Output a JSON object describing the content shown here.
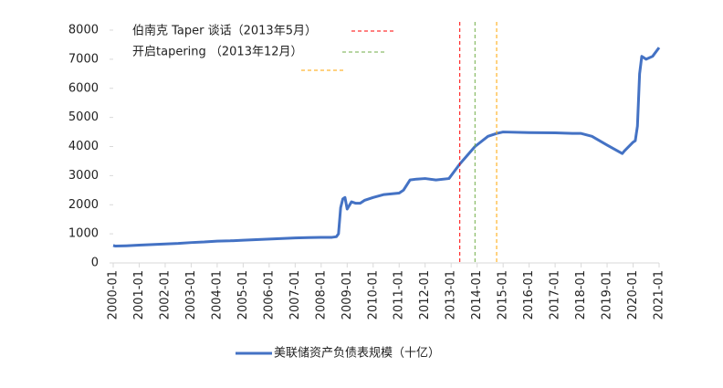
{
  "chart_data": {
    "type": "line",
    "xticks": [
      "2000-01",
      "2001-01",
      "2002-01",
      "2003-01",
      "2004-01",
      "2005-01",
      "2006-01",
      "2007-01",
      "2008-01",
      "2009-01",
      "2010-01",
      "2011-01",
      "2012-01",
      "2013-01",
      "2014-01",
      "2015-01",
      "2016-01",
      "2017-01",
      "2018-01",
      "2019-01",
      "2020-01",
      "2021-01"
    ],
    "ylim": [
      0,
      8000
    ],
    "yticks": [
      0,
      1000,
      2000,
      3000,
      4000,
      5000,
      6000,
      7000,
      8000
    ],
    "series": [
      {
        "name": "美联储资产负债表规模（十亿）",
        "color": "#4472c4",
        "x": [
          "2000-01",
          "2000-02",
          "2000-07",
          "2001-01",
          "2001-07",
          "2002-01",
          "2002-07",
          "2003-01",
          "2003-07",
          "2004-01",
          "2004-07",
          "2005-01",
          "2005-07",
          "2006-01",
          "2006-07",
          "2007-01",
          "2007-07",
          "2008-01",
          "2008-06",
          "2008-08",
          "2008-09",
          "2008-10",
          "2008-11",
          "2008-12",
          "2009-01",
          "2009-03",
          "2009-05",
          "2009-07",
          "2009-09",
          "2010-01",
          "2010-06",
          "2011-01",
          "2011-03",
          "2011-06",
          "2011-09",
          "2012-01",
          "2012-06",
          "2012-12",
          "2013-05",
          "2013-12",
          "2014-06",
          "2014-10",
          "2015-01",
          "2016-01",
          "2017-01",
          "2017-09",
          "2018-01",
          "2018-06",
          "2019-01",
          "2019-08",
          "2019-09",
          "2020-01",
          "2020-02",
          "2020-03",
          "2020-04",
          "2020-05",
          "2020-06",
          "2020-07",
          "2020-10",
          "2021-01"
        ],
        "values": [
          600,
          580,
          590,
          610,
          630,
          650,
          670,
          700,
          720,
          750,
          760,
          780,
          800,
          820,
          840,
          860,
          870,
          880,
          880,
          900,
          1000,
          1900,
          2200,
          2250,
          1850,
          2100,
          2050,
          2050,
          2150,
          2250,
          2350,
          2400,
          2500,
          2850,
          2880,
          2900,
          2850,
          2900,
          3400,
          4000,
          4350,
          4450,
          4500,
          4480,
          4470,
          4450,
          4450,
          4350,
          4050,
          3760,
          3850,
          4150,
          4200,
          4700,
          6500,
          7100,
          7050,
          7000,
          7100,
          7400
        ]
      }
    ],
    "vlines": [
      {
        "x": "2013-05",
        "color": "#ff0000",
        "label": "伯南克 Taper 谈话（2013年5月）"
      },
      {
        "x": "2013-12",
        "color": "#70ad47",
        "label": "开启tapering （2013年12月）"
      },
      {
        "x": "2014-10",
        "color": "#ffa500"
      }
    ],
    "legend": "bottom"
  }
}
